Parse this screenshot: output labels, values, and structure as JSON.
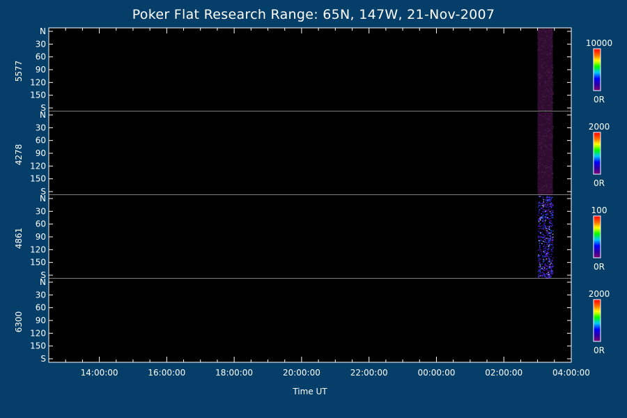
{
  "title": "Poker Flat Research Range: 65N, 147W, 21-Nov-2007",
  "xlabel": "Time UT",
  "chart_data": {
    "type": "heatmap",
    "title": "Poker Flat Research Range: 65N, 147W, 21-Nov-2007",
    "xlabel": "Time UT",
    "x_ticks": [
      "14:00:00",
      "16:00:00",
      "18:00:00",
      "20:00:00",
      "22:00:00",
      "00:00:00",
      "02:00:00",
      "04:00:00"
    ],
    "xlim_hours": [
      12.5,
      28.0
    ],
    "y_tick_labels": [
      "N",
      "30",
      "60",
      "90",
      "120",
      "150",
      "S"
    ],
    "ylim_deg": [
      0,
      180
    ],
    "data_window_hours": [
      27.0,
      27.45
    ],
    "colormap": [
      "#7a0078",
      "#3000a0",
      "#0000ff",
      "#00c8ff",
      "#00ff00",
      "#ffff00",
      "#ff6000",
      "#ff0000"
    ],
    "panels": [
      {
        "label": "5577",
        "scale_max": "10000",
        "scale_min": "0R",
        "signal_color": "#3a0f3a",
        "noise": "faint"
      },
      {
        "label": "4278",
        "scale_max": "2000",
        "scale_min": "0R",
        "signal_color": "#3a0f3a",
        "noise": "faint"
      },
      {
        "label": "4861",
        "scale_max": "100",
        "scale_min": "0R",
        "signal_color": "#2a1288",
        "noise": "speckled"
      },
      {
        "label": "6300",
        "scale_max": "2000",
        "scale_min": "0R",
        "signal_color": "#000000",
        "noise": "none"
      }
    ]
  }
}
